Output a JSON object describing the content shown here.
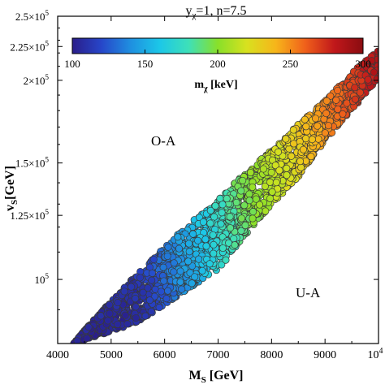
{
  "title": {
    "main": "y",
    "sub": "χ",
    "rest": "=1, n=7.5"
  },
  "colorbar": {
    "ticks": [
      "100",
      "150",
      "200",
      "250",
      "300"
    ],
    "label_main": "m",
    "label_sub": "χ",
    "label_unit": " [keV]",
    "stops": [
      "#2a1e8a",
      "#2746c9",
      "#1f8fe0",
      "#1cc7e8",
      "#3ee0b8",
      "#88e02a",
      "#d8e11f",
      "#f7b51a",
      "#f0611b",
      "#c1181b",
      "#8a0c10"
    ]
  },
  "annotations": {
    "oa": "O-A",
    "ua": "U-A"
  },
  "xaxis": {
    "label_main": "M",
    "label_sub": "S",
    "label_unit": " [GeV]",
    "ticks": [
      "4000",
      "5000",
      "6000",
      "7000",
      "8000",
      "9000"
    ],
    "last_tick_base": "10",
    "last_tick_exp": "4"
  },
  "yaxis": {
    "label_main": "v",
    "label_sub": "S",
    "label_unit": "[GeV]",
    "ticks": [
      {
        "mant": "10",
        "exp": "5"
      },
      {
        "mant": "1.25×10",
        "exp": "5"
      },
      {
        "mant": "1.5×10",
        "exp": "5"
      },
      {
        "mant": "2×10",
        "exp": "5"
      },
      {
        "mant": "2.25×10",
        "exp": "5"
      },
      {
        "mant": "2.5×10",
        "exp": "5"
      }
    ]
  },
  "chart_data": {
    "type": "scatter",
    "xlim": [
      4000,
      10000
    ],
    "ylim": [
      80000,
      250000
    ],
    "y_scale": "log",
    "color_variable_range": [
      100,
      300
    ],
    "band": {
      "lower_edge": [
        [
          4300,
          80000
        ],
        [
          5500,
          86000
        ],
        [
          7000,
          103000
        ],
        [
          8500,
          143000
        ],
        [
          9700,
          188000
        ],
        [
          10000,
          202000
        ]
      ],
      "upper_edge": [
        [
          4300,
          80000
        ],
        [
          5500,
          102000
        ],
        [
          7000,
          132000
        ],
        [
          8000,
          157000
        ],
        [
          9000,
          186000
        ],
        [
          9600,
          209000
        ],
        [
          10000,
          222000
        ]
      ],
      "mass_at_x": [
        [
          4300,
          100
        ],
        [
          5500,
          108
        ],
        [
          6500,
          150
        ],
        [
          7500,
          195
        ],
        [
          8500,
          230
        ],
        [
          9500,
          268
        ],
        [
          10000,
          285
        ]
      ]
    },
    "grid": false
  }
}
